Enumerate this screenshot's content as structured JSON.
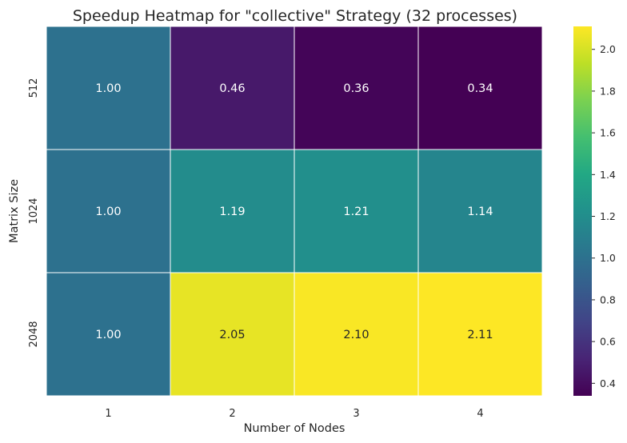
{
  "chart_data": {
    "type": "heatmap",
    "title": "Speedup Heatmap for \"collective\" Strategy (32 processes)",
    "xlabel": "Number of Nodes",
    "ylabel": "Matrix Size",
    "x_categories": [
      "1",
      "2",
      "3",
      "4"
    ],
    "y_categories": [
      "512",
      "1024",
      "2048"
    ],
    "values": [
      [
        1.0,
        0.46,
        0.36,
        0.34
      ],
      [
        1.0,
        1.19,
        1.21,
        1.14
      ],
      [
        1.0,
        2.05,
        2.1,
        2.11
      ]
    ],
    "value_labels": [
      [
        "1.00",
        "0.46",
        "0.36",
        "0.34"
      ],
      [
        "1.00",
        "1.19",
        "1.21",
        "1.14"
      ],
      [
        "1.00",
        "2.05",
        "2.10",
        "2.11"
      ]
    ],
    "colormap": "viridis",
    "color_range": [
      0.34,
      2.11
    ],
    "colorbar_ticks": [
      "0.4",
      "0.6",
      "0.8",
      "1.0",
      "1.2",
      "1.4",
      "1.6",
      "1.8",
      "2.0"
    ],
    "cell_border_color": "#ffffff",
    "legend_placement": "right",
    "grid": false
  }
}
